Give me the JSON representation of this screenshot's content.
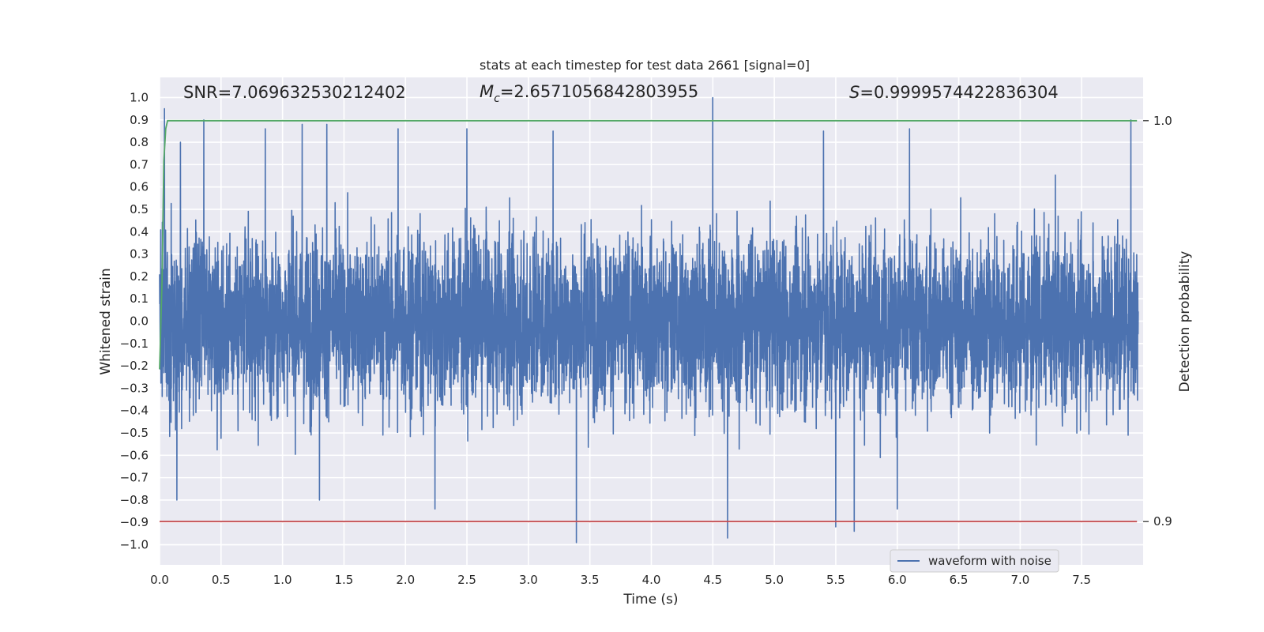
{
  "chart_data": {
    "type": "line",
    "title": "stats at each timestep for test data 2661 [signal=0]",
    "xlabel": "Time (s)",
    "ylabel": "Whitened strain",
    "ylabel_right": "Detection probability",
    "xlim": [
      0,
      8.0
    ],
    "ylim": [
      -1.09,
      1.09
    ],
    "ylim_right": [
      0.8892,
      1.0108
    ],
    "x_ticks": [
      "0.0",
      "0.5",
      "1.0",
      "1.5",
      "2.0",
      "2.5",
      "3.0",
      "3.5",
      "4.0",
      "4.5",
      "5.0",
      "5.5",
      "6.0",
      "6.5",
      "7.0",
      "7.5"
    ],
    "y_ticks": [
      "1.0",
      "0.9",
      "0.8",
      "0.7",
      "0.6",
      "0.5",
      "0.4",
      "0.3",
      "0.2",
      "0.1",
      "0.0",
      "−0.1",
      "−0.2",
      "−0.3",
      "−0.4",
      "−0.5",
      "−0.6",
      "−0.7",
      "−0.8",
      "−0.9",
      "−1.0"
    ],
    "y_ticks_right": [
      "1.0",
      "0.9"
    ],
    "grid": true,
    "legend_position": "bottom-right",
    "annotations": {
      "snr": "SNR=7.069632530212402",
      "mc_symbol": "M",
      "mc_sub": "c",
      "mc_value": "=2.6571056842803955",
      "s_symbol": "S",
      "s_value": "=0.9999574422836304"
    },
    "series": [
      {
        "name": "waveform with noise",
        "axis": "left",
        "color": "#4c72b0",
        "kind": "noise",
        "x_range": [
          0,
          8.0
        ],
        "envelope_typical": [
          -0.45,
          0.45
        ],
        "min": -0.99,
        "max": 1.0,
        "peaks": [
          {
            "x": 0.04,
            "y": 0.95
          },
          {
            "x": 0.17,
            "y": 0.8
          },
          {
            "x": 0.36,
            "y": 0.9
          },
          {
            "x": 0.86,
            "y": 0.86
          },
          {
            "x": 1.16,
            "y": 0.88
          },
          {
            "x": 1.36,
            "y": 0.88
          },
          {
            "x": 1.94,
            "y": 0.86
          },
          {
            "x": 2.5,
            "y": 0.86
          },
          {
            "x": 3.2,
            "y": 0.85
          },
          {
            "x": 4.5,
            "y": 1.0
          },
          {
            "x": 5.4,
            "y": 0.85
          },
          {
            "x": 6.1,
            "y": 0.86
          },
          {
            "x": 7.9,
            "y": 0.9
          },
          {
            "x": 3.39,
            "y": -0.99
          },
          {
            "x": 4.62,
            "y": -0.97
          },
          {
            "x": 2.24,
            "y": -0.84
          },
          {
            "x": 5.65,
            "y": -0.94
          },
          {
            "x": 5.5,
            "y": -0.92
          },
          {
            "x": 1.3,
            "y": -0.8
          },
          {
            "x": 6.0,
            "y": -0.84
          },
          {
            "x": 0.14,
            "y": -0.8
          }
        ]
      },
      {
        "name": "",
        "axis": "right",
        "color": "#55a868",
        "x": [
          0,
          0.02,
          0.035,
          0.05,
          0.065,
          7.95
        ],
        "y": [
          0.938,
          0.96,
          0.99,
          0.998,
          1.0,
          1.0
        ]
      },
      {
        "name": "",
        "axis": "right",
        "color": "#c44e52",
        "x": [
          0,
          7.95
        ],
        "y": [
          0.9,
          0.9
        ]
      }
    ]
  }
}
